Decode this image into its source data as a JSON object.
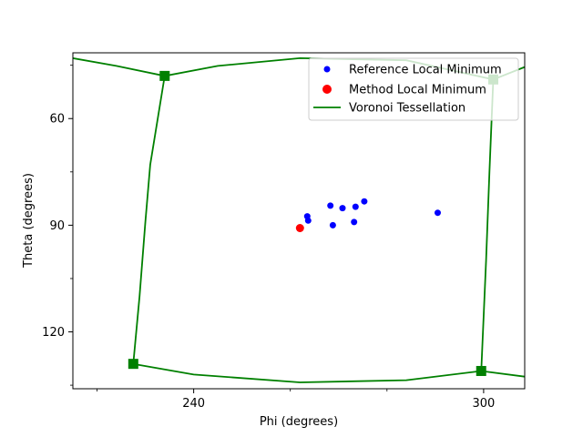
{
  "chart_data": {
    "type": "scatter",
    "xlabel": "Phi (degrees)",
    "ylabel": "Theta (degrees)",
    "xlim": [
      215,
      308.5
    ],
    "ylim": [
      136,
      41.5
    ],
    "x_ticks": [
      240,
      300
    ],
    "y_ticks": [
      60,
      90,
      120
    ],
    "x_minor_ticks": [
      220,
      260,
      280
    ],
    "y_minor_ticks": [
      45,
      75,
      105,
      135
    ],
    "grid": false,
    "legend_position": "upper right",
    "legend": [
      {
        "label": "Reference Local Minimum",
        "marker": "circle",
        "color": "#0000ff"
      },
      {
        "label": "Method Local Minimum",
        "marker": "circle",
        "color": "#ff0000"
      },
      {
        "label": "Voronoi Tessellation",
        "marker": "line",
        "color": "#008000"
      }
    ],
    "series": [
      {
        "name": "Reference Local Minimum",
        "color": "#0000ff",
        "points": [
          [
            263.5,
            87.5
          ],
          [
            263.7,
            88.7
          ],
          [
            268.3,
            84.5
          ],
          [
            268.8,
            90.0
          ],
          [
            270.8,
            85.2
          ],
          [
            273.2,
            89.1
          ],
          [
            273.5,
            84.8
          ],
          [
            275.3,
            83.3
          ],
          [
            290.5,
            86.5
          ]
        ]
      },
      {
        "name": "Method Local Minimum",
        "color": "#ff0000",
        "points": [
          [
            262.0,
            90.8
          ]
        ]
      }
    ],
    "voronoi": {
      "name": "Voronoi Tessellation",
      "color": "#008000",
      "vertices": [
        [
          234.0,
          48.0
        ],
        [
          227.5,
          129.0
        ],
        [
          302.0,
          49.0
        ],
        [
          299.5,
          131.0
        ]
      ],
      "edges": [
        [
          [
            215.0,
            43.0
          ],
          [
            224.0,
            45.2
          ],
          [
            234.0,
            48.0
          ],
          [
            245.0,
            45.2
          ],
          [
            262.0,
            43.0
          ],
          [
            284.0,
            43.6
          ],
          [
            302.0,
            49.0
          ],
          [
            308.5,
            45.5
          ]
        ],
        [
          [
            234.0,
            48.0
          ],
          [
            231.0,
            73.0
          ],
          [
            230.0,
            89.0
          ],
          [
            228.8,
            110.0
          ],
          [
            227.5,
            129.0
          ]
        ],
        [
          [
            302.0,
            49.0
          ],
          [
            301.2,
            75.0
          ],
          [
            300.5,
            100.0
          ],
          [
            299.5,
            131.0
          ]
        ],
        [
          [
            227.5,
            129.0
          ],
          [
            240.0,
            132.0
          ],
          [
            262.0,
            134.2
          ],
          [
            284.0,
            133.6
          ],
          [
            299.5,
            131.0
          ],
          [
            308.5,
            132.6
          ]
        ]
      ]
    }
  }
}
